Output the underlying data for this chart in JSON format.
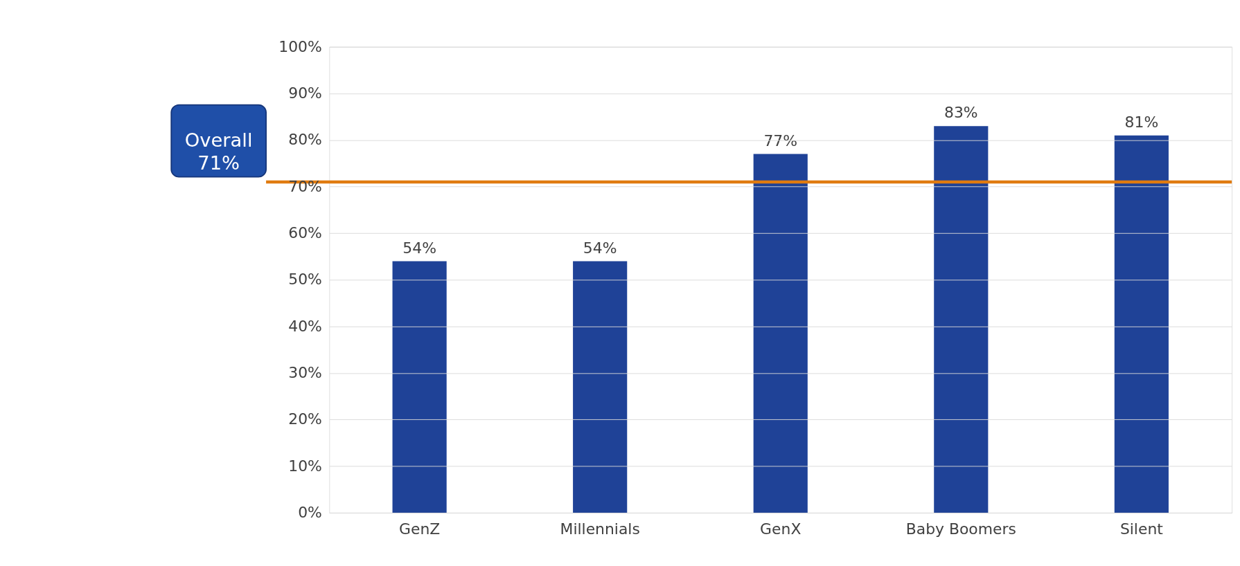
{
  "chart_data": {
    "type": "bar",
    "categories": [
      "GenZ",
      "Millennials",
      "GenX",
      "Baby Boomers",
      "Silent"
    ],
    "values": [
      54,
      54,
      77,
      83,
      81
    ],
    "color": "#1f4297",
    "ylim": [
      0,
      100
    ],
    "yticks": [
      {
        "value": 0,
        "label": "0%"
      },
      {
        "value": 10,
        "label": "10%"
      },
      {
        "value": 20,
        "label": "20%"
      },
      {
        "value": 30,
        "label": "30%"
      },
      {
        "value": 40,
        "label": "40%"
      },
      {
        "value": 50,
        "label": "50%"
      },
      {
        "value": 60,
        "label": "60%"
      },
      {
        "value": 70,
        "label": "70%"
      },
      {
        "value": 80,
        "label": "80%"
      },
      {
        "value": 90,
        "label": "90%"
      },
      {
        "value": 100,
        "label": "100%"
      }
    ],
    "value_labels": [
      "54%",
      "54%",
      "77%",
      "83%",
      "81%"
    ],
    "ref_lines": [
      {
        "axis": "y",
        "value": 71,
        "label": "Overall\n71%",
        "color": "#e07b10"
      }
    ],
    "grid": "y"
  }
}
